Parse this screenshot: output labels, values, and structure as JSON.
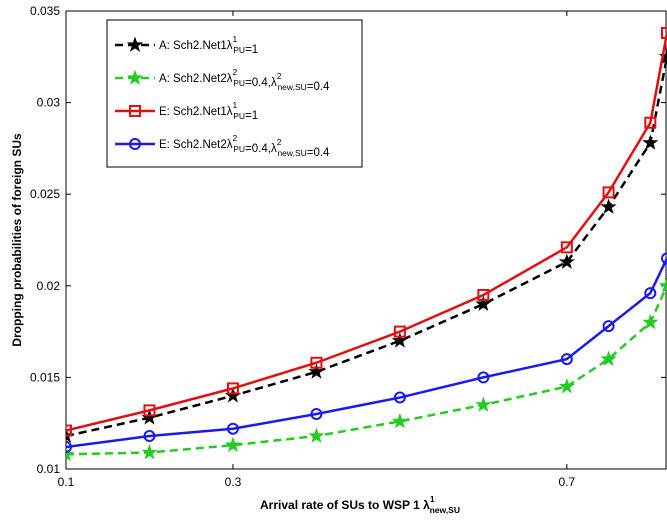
{
  "chart_data": {
    "type": "line",
    "xlabel": {
      "base": "Arrival rate of SUs to WSP 1 λ",
      "sup": "1",
      "sub": "new,SU"
    },
    "ylabel": "Dropping probabilities of foreign SUs",
    "xlim": [
      0.1,
      0.82
    ],
    "ylim": [
      0.01,
      0.035
    ],
    "xticks": [
      0.1,
      0.3,
      0.7
    ],
    "yticks": [
      0.01,
      0.015,
      0.02,
      0.025,
      0.03,
      0.035
    ],
    "xtick_labels": [
      "0.1",
      "0.3",
      "0.7"
    ],
    "ytick_labels": [
      "0.01",
      "0.015",
      "0.02",
      "0.025",
      "0.03",
      "0.035"
    ],
    "grid": false,
    "legend_position": "top-left",
    "series": [
      {
        "name": "A: Sch2.Net1λ¹PU=1",
        "label_parts": [
          [
            "A: Sch2.Net1λ",
            ""
          ],
          [
            "1",
            "sup"
          ],
          [
            "PU",
            "sub"
          ],
          [
            "=1",
            ""
          ]
        ],
        "color": "#000000",
        "dash": "8,5",
        "marker": "star",
        "marker_fill": "#000000",
        "x": [
          0.1,
          0.2,
          0.3,
          0.4,
          0.5,
          0.6,
          0.7,
          0.75,
          0.8,
          0.82
        ],
        "y": [
          0.0118,
          0.0128,
          0.014,
          0.0153,
          0.017,
          0.019,
          0.0213,
          0.0243,
          0.0278,
          0.0325
        ]
      },
      {
        "name": "A: Sch2.Net2λ²PU=0.4,λ²new,SU=0.4",
        "label_parts": [
          [
            "A: Sch2.Net2λ",
            ""
          ],
          [
            "2",
            "sup"
          ],
          [
            "PU",
            "sub"
          ],
          [
            "=0.4,λ",
            ""
          ],
          [
            "2",
            "sup"
          ],
          [
            "new,SU",
            "sub"
          ],
          [
            "=0.4",
            ""
          ]
        ],
        "color": "#22cc22",
        "dash": "8,5",
        "marker": "star",
        "marker_fill": "#22cc22",
        "x": [
          0.1,
          0.2,
          0.3,
          0.4,
          0.5,
          0.6,
          0.7,
          0.75,
          0.8,
          0.82
        ],
        "y": [
          0.0108,
          0.0109,
          0.0113,
          0.0118,
          0.0126,
          0.0135,
          0.0145,
          0.016,
          0.018,
          0.02
        ]
      },
      {
        "name": "E: Sch2.Net1λ¹PU=1",
        "label_parts": [
          [
            "E: Sch2.Net1λ",
            ""
          ],
          [
            "1",
            "sup"
          ],
          [
            "PU",
            "sub"
          ],
          [
            "=1",
            ""
          ]
        ],
        "color": "#e01010",
        "dash": "",
        "marker": "square",
        "marker_fill": "none",
        "x": [
          0.1,
          0.2,
          0.3,
          0.4,
          0.5,
          0.6,
          0.7,
          0.75,
          0.8,
          0.82
        ],
        "y": [
          0.0121,
          0.0132,
          0.0144,
          0.0158,
          0.0175,
          0.0195,
          0.0221,
          0.0251,
          0.0289,
          0.0338
        ]
      },
      {
        "name": "E: Sch2.Net2λ²PU=0.4,λ²new,SU=0.4",
        "label_parts": [
          [
            "E: Sch2.Net2λ",
            ""
          ],
          [
            "2",
            "sup"
          ],
          [
            "PU",
            "sub"
          ],
          [
            "=0.4,λ",
            ""
          ],
          [
            "2",
            "sup"
          ],
          [
            "new,SU",
            "sub"
          ],
          [
            "=0.4",
            ""
          ]
        ],
        "color": "#1a1aee",
        "dash": "",
        "marker": "circle",
        "marker_fill": "none",
        "x": [
          0.1,
          0.2,
          0.3,
          0.4,
          0.5,
          0.6,
          0.7,
          0.75,
          0.8,
          0.82
        ],
        "y": [
          0.0112,
          0.0118,
          0.0122,
          0.013,
          0.0139,
          0.015,
          0.016,
          0.0178,
          0.0196,
          0.0215
        ]
      }
    ]
  }
}
